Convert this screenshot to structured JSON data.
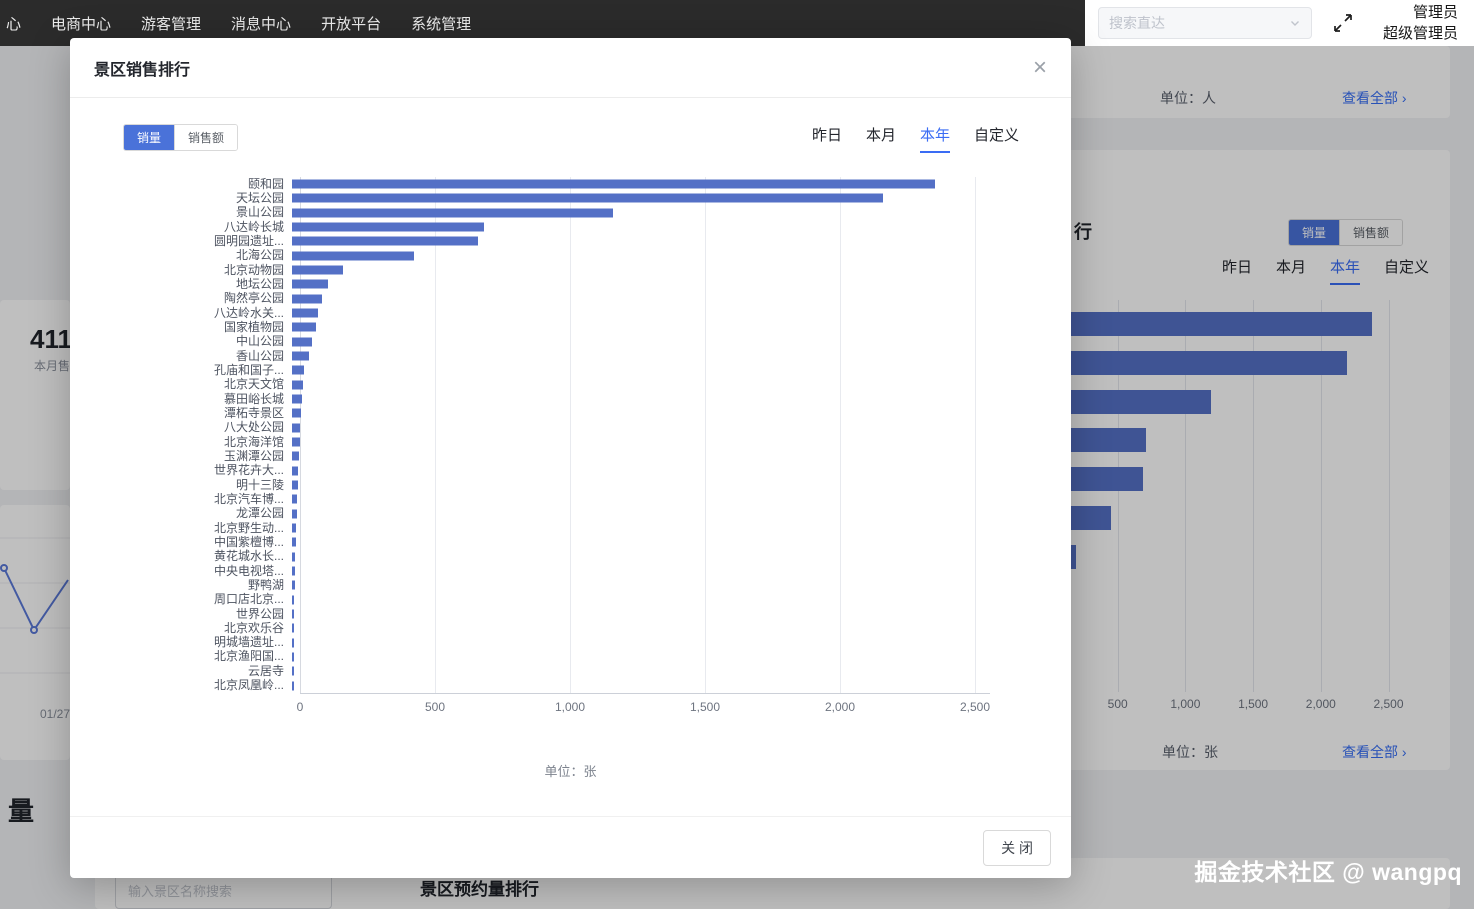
{
  "colors": {
    "accent_blue": "#3a6cf4",
    "toggle_active_blue": "#4a72d9",
    "bar_blue": "#5470c6",
    "topbar_bg": "#2b2b2b",
    "mask": "rgba(0,0,0,0.25)"
  },
  "topnav": {
    "items": [
      "心",
      "电商中心",
      "游客管理",
      "消息中心",
      "开放平台",
      "系统管理"
    ],
    "search_placeholder": "搜索直达",
    "admin_role": "管理员",
    "admin_name": "超级管理员"
  },
  "background": {
    "stats_card": {
      "value_fragment": "411",
      "label_fragment": "本月售"
    },
    "top_card": {
      "unit": "单位：人",
      "view_all": "查看全部 ›"
    },
    "ranking_card": {
      "title_fragment": "行",
      "toggle": {
        "volume": "销量",
        "amount": "销售额",
        "active": "销量"
      },
      "tabs": [
        "昨日",
        "本月",
        "本年",
        "自定义"
      ],
      "active_tab": "本年",
      "unit": "单位：张",
      "view_all": "查看全部 ›"
    },
    "line_chart": {
      "x_label": "01/27"
    },
    "section_heading_fragment": "量",
    "bottom_card": {
      "search_placeholder": "输入景区名称搜索",
      "title": "景区预约量排行"
    }
  },
  "modal": {
    "title": "景区销售排行",
    "close_icon": "×",
    "toggle": {
      "volume": "销量",
      "amount": "销售额",
      "active": "销量"
    },
    "tabs": [
      "昨日",
      "本月",
      "本年",
      "自定义"
    ],
    "active_tab": "本年",
    "unit": "单位：张",
    "close_button": "关 闭"
  },
  "chart_data": [
    {
      "id": "modal-sales-ranking",
      "type": "bar",
      "orientation": "horizontal",
      "title": "景区销售排行",
      "categories": [
        "颐和园",
        "天坛公园",
        "景山公园",
        "八达岭长城",
        "圆明园遗址...",
        "北海公园",
        "北京动物园",
        "地坛公园",
        "陶然亭公园",
        "八达岭水关...",
        "国家植物园",
        "中山公园",
        "香山公园",
        "孔庙和国子...",
        "北京天文馆",
        "慕田峪长城",
        "潭柘寺景区",
        "八大处公园",
        "北京海洋馆",
        "玉渊潭公园",
        "世界花卉大...",
        "明十三陵",
        "北京汽车博...",
        "龙潭公园",
        "北京野生动...",
        "中国紫檀博...",
        "黄花城水长...",
        "中央电视塔...",
        "野鸭湖",
        "周口店北京...",
        "世界公园",
        "北京欢乐谷",
        "明城墙遗址...",
        "北京渔阳国...",
        "云居寺",
        "北京凤凰岭..."
      ],
      "values": [
        2380,
        2190,
        1190,
        710,
        690,
        450,
        190,
        135,
        110,
        95,
        88,
        75,
        62,
        45,
        40,
        36,
        33,
        30,
        28,
        26,
        24,
        21,
        19,
        17,
        15,
        14,
        12,
        11,
        10,
        9,
        8,
        7,
        6,
        5,
        4,
        3
      ],
      "xticks": [
        "0",
        "500",
        "1,000",
        "1,500",
        "2,000",
        "2,500"
      ],
      "xlim": [
        0,
        2500
      ],
      "unit": "单位：张",
      "grid": true,
      "legend": "none"
    },
    {
      "id": "background-sales-ranking",
      "type": "bar",
      "orientation": "horizontal",
      "values": [
        2380,
        2190,
        1190,
        710,
        690,
        450,
        190
      ],
      "xticks": [
        "500",
        "1,000",
        "1,500",
        "2,000",
        "2,500"
      ],
      "xlim": [
        0,
        2500
      ],
      "unit": "单位：张",
      "grid": true
    }
  ],
  "watermark": "掘金技术社区 @ wangpq"
}
